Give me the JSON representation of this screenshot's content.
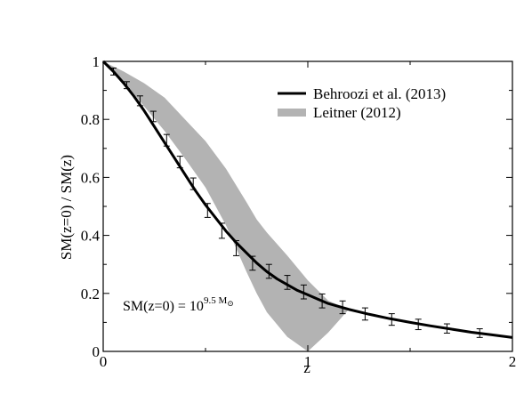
{
  "chart_data": {
    "type": "line",
    "xlabel": "z",
    "ylabel": "SM(z=0) / SM(z)",
    "xlim": [
      0,
      2
    ],
    "ylim": [
      0,
      1
    ],
    "x_ticks": [
      "0",
      "1",
      "2"
    ],
    "y_ticks": [
      "0",
      "0.2",
      "0.4",
      "0.6",
      "0.8",
      "1"
    ],
    "x_tick_values": [
      0,
      1,
      2
    ],
    "y_tick_values": [
      0,
      0.2,
      0.4,
      0.6,
      0.8,
      1
    ],
    "legend_position": "top-right",
    "grid": false,
    "annotation": {
      "base": "SM(z=0) = 10",
      "exponent": "9.5 M",
      "subscript": "⊙"
    },
    "series": [
      {
        "name": "Behroozi et al. (2013)",
        "kind": "line",
        "color": "#000000",
        "x": [
          0,
          0.05,
          0.1,
          0.15,
          0.2,
          0.25,
          0.3,
          0.35,
          0.4,
          0.45,
          0.5,
          0.55,
          0.6,
          0.65,
          0.7,
          0.75,
          0.8,
          0.85,
          0.9,
          0.95,
          1.0,
          1.05,
          1.1,
          1.15,
          1.2,
          1.3,
          1.4,
          1.5,
          1.6,
          1.7,
          1.8,
          1.9,
          2.0
        ],
        "y": [
          1.0,
          0.965,
          0.925,
          0.88,
          0.83,
          0.775,
          0.72,
          0.665,
          0.61,
          0.555,
          0.505,
          0.46,
          0.415,
          0.375,
          0.34,
          0.305,
          0.275,
          0.25,
          0.23,
          0.21,
          0.195,
          0.18,
          0.165,
          0.155,
          0.145,
          0.128,
          0.113,
          0.1,
          0.088,
          0.077,
          0.066,
          0.057,
          0.048
        ]
      },
      {
        "name": "Behroozi et al. (2013) errors",
        "kind": "errorbar",
        "color": "#000000",
        "x": [
          0.05,
          0.115,
          0.18,
          0.245,
          0.31,
          0.375,
          0.44,
          0.51,
          0.58,
          0.65,
          0.73,
          0.81,
          0.9,
          0.98,
          1.07,
          1.17,
          1.28,
          1.41,
          1.54,
          1.68,
          1.84
        ],
        "y": [
          0.965,
          0.918,
          0.864,
          0.81,
          0.728,
          0.653,
          0.578,
          0.486,
          0.416,
          0.356,
          0.304,
          0.276,
          0.238,
          0.205,
          0.174,
          0.152,
          0.129,
          0.11,
          0.093,
          0.079,
          0.063
        ],
        "err": [
          0.012,
          0.012,
          0.017,
          0.018,
          0.02,
          0.02,
          0.02,
          0.024,
          0.026,
          0.026,
          0.024,
          0.024,
          0.024,
          0.024,
          0.024,
          0.022,
          0.021,
          0.02,
          0.018,
          0.016,
          0.015
        ]
      },
      {
        "name": "Leitner (2012)",
        "kind": "band",
        "color": "#b3b3b3",
        "x": [
          0,
          0.1,
          0.2,
          0.3,
          0.4,
          0.5,
          0.6,
          0.7,
          0.75,
          0.8,
          0.9,
          1.0,
          1.1,
          1.2
        ],
        "y_upper": [
          1.0,
          0.965,
          0.925,
          0.875,
          0.8,
          0.725,
          0.63,
          0.515,
          0.455,
          0.41,
          0.33,
          0.245,
          0.175,
          0.145
        ],
        "y_lower": [
          1.0,
          0.93,
          0.845,
          0.76,
          0.665,
          0.565,
          0.435,
          0.275,
          0.2,
          0.135,
          0.05,
          0.0,
          0.065,
          0.145
        ]
      }
    ]
  }
}
